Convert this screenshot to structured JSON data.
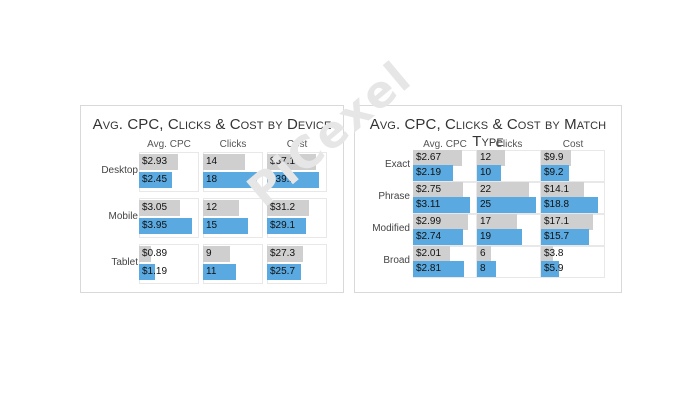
{
  "chart_data": [
    {
      "type": "bar",
      "title": "Avg. CPC, Clicks & Cost by Device",
      "columns": [
        "Avg. CPC",
        "Clicks",
        "Cost"
      ],
      "categories": [
        "Desktop",
        "Mobile",
        "Tablet"
      ],
      "series": [
        {
          "values": {
            "Avg. CPC": [
              2.93,
              3.05,
              0.89
            ],
            "Clicks": [
              14,
              12,
              9
            ],
            "Cost": [
              37.1,
              31.2,
              27.3
            ]
          },
          "labels": {
            "Avg. CPC": [
              "$2.93",
              "$3.05",
              "$0.89"
            ],
            "Clicks": [
              "14",
              "12",
              "9"
            ],
            "Cost": [
              "$37.1",
              "$31.2",
              "$27.3"
            ]
          },
          "color": "#cfcfcf"
        },
        {
          "values": {
            "Avg. CPC": [
              2.45,
              3.95,
              1.19
            ],
            "Clicks": [
              18,
              15,
              11
            ],
            "Cost": [
              39.2,
              29.1,
              25.7
            ]
          },
          "labels": {
            "Avg. CPC": [
              "$2.45",
              "$3.95",
              "$1.19"
            ],
            "Clicks": [
              "18",
              "15",
              "11"
            ],
            "Cost": [
              "$39.2",
              "$29.1",
              "$25.7"
            ]
          },
          "color": "#5aa9e0"
        }
      ],
      "max": {
        "Avg. CPC": 4.5,
        "Clicks": 20,
        "Cost": 45
      }
    },
    {
      "type": "bar",
      "title": "Avg. CPC, Clicks & Cost by Match Type",
      "columns": [
        "Avg. CPC",
        "Clicks",
        "Cost"
      ],
      "categories": [
        "Exact",
        "Phrase",
        "Modified",
        "Broad"
      ],
      "series": [
        {
          "values": {
            "Avg. CPC": [
              2.67,
              2.75,
              2.99,
              2.01
            ],
            "Clicks": [
              12,
              22,
              17,
              6
            ],
            "Cost": [
              9.9,
              14.1,
              17.1,
              3.8
            ]
          },
          "labels": {
            "Avg. CPC": [
              "$2.67",
              "$2.75",
              "$2.99",
              "$2.01"
            ],
            "Clicks": [
              "12",
              "22",
              "17",
              "6"
            ],
            "Cost": [
              "$9.9",
              "$14.1",
              "$17.1",
              "$3.8"
            ]
          },
          "color": "#cfcfcf"
        },
        {
          "values": {
            "Avg. CPC": [
              2.19,
              3.11,
              2.74,
              2.81
            ],
            "Clicks": [
              10,
              25,
              19,
              8
            ],
            "Cost": [
              9.2,
              18.8,
              15.7,
              5.9
            ]
          },
          "labels": {
            "Avg. CPC": [
              "$2.19",
              "$3.11",
              "$2.74",
              "$2.81"
            ],
            "Clicks": [
              "10",
              "25",
              "19",
              "8"
            ],
            "Cost": [
              "$9.2",
              "$18.8",
              "$15.7",
              "$5.9"
            ]
          },
          "color": "#5aa9e0"
        }
      ],
      "max": {
        "Avg. CPC": 3.5,
        "Clicks": 27,
        "Cost": 21
      }
    }
  ],
  "watermark": "PiCexel"
}
